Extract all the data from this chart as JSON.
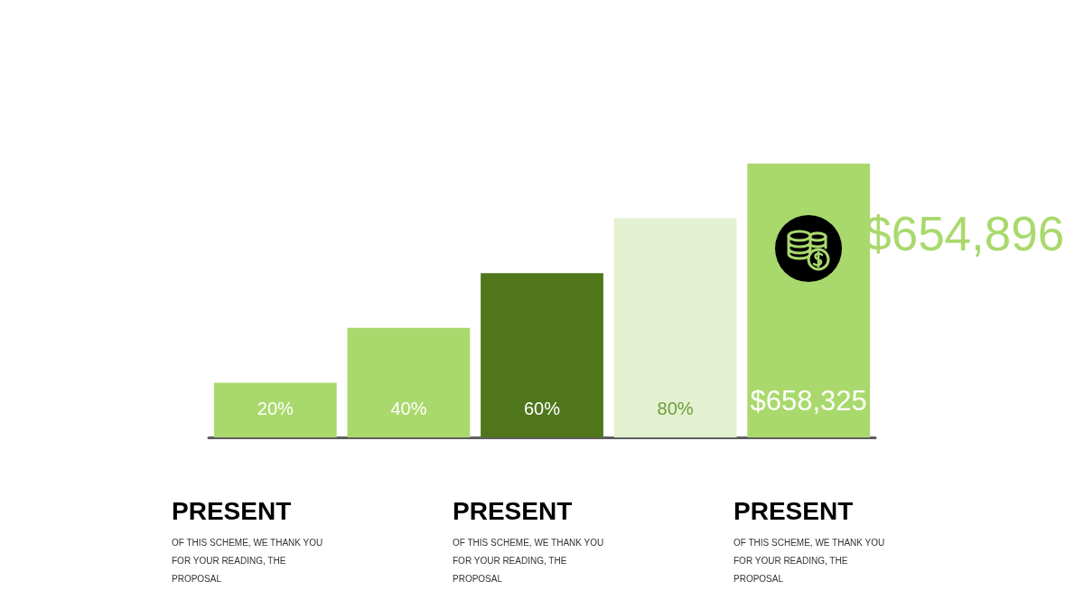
{
  "chart_data": {
    "type": "bar",
    "categories": [
      null,
      null,
      null,
      null,
      null
    ],
    "values": [
      20,
      40,
      60,
      80,
      100
    ],
    "colors": [
      "#a9d96c",
      "#a9d96c",
      "#4f761b",
      "#e3f1d0",
      "#a9d96c"
    ],
    "value_labels": [
      "20%",
      "40%",
      "60%",
      "80%",
      null
    ],
    "annotations": [
      "$654,896",
      "$658,325",
      "PRESENT",
      "OF THIS SCHEME, WE THANK YOU FOR YOUR READING, THE PROPOSAL",
      "PRESENT",
      "OF THIS SCHEME, WE THANK YOU FOR YOUR READING, THE PROPOSAL",
      "PRESENT",
      "OF THIS SCHEME, WE THANK YOU FOR YOUR READING, THE PROPOSAL"
    ]
  }
}
